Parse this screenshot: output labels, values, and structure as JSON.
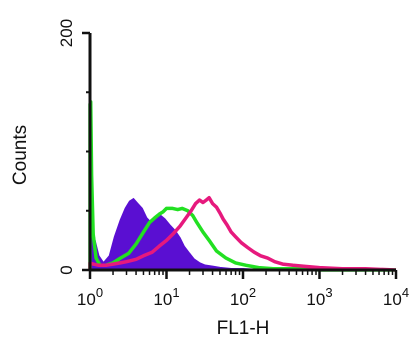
{
  "chart_data": {
    "type": "histogram",
    "xlabel": "FL1-H",
    "ylabel": "Counts",
    "x_scale": "log",
    "xlim": [
      1,
      10000
    ],
    "ylim": [
      0,
      200
    ],
    "x_ticks": [
      {
        "value": 1,
        "base": "10",
        "exp": "0"
      },
      {
        "value": 10,
        "base": "10",
        "exp": "1"
      },
      {
        "value": 100,
        "base": "10",
        "exp": "2"
      },
      {
        "value": 1000,
        "base": "10",
        "exp": "3"
      },
      {
        "value": 10000,
        "base": "10",
        "exp": "4"
      }
    ],
    "y_ticks": [
      {
        "value": 0,
        "label": "0"
      },
      {
        "value": 200,
        "label": "200"
      }
    ],
    "grid": false,
    "series": [
      {
        "style": "filled",
        "color": "#5a0fd2",
        "x": [
          1,
          1.05,
          1.15,
          1.3,
          1.5,
          1.8,
          2.1,
          2.5,
          2.9,
          3.3,
          3.7,
          4.2,
          4.8,
          5.5,
          6.3,
          7.1,
          8,
          9.5,
          11,
          13,
          15,
          17,
          20,
          23,
          27,
          32,
          40,
          50,
          70,
          100,
          200,
          1000,
          10000
        ],
        "y": [
          48,
          45,
          26,
          12,
          6,
          12,
          28,
          42,
          52,
          58,
          60,
          56,
          52,
          44,
          40,
          44,
          47,
          43,
          38,
          33,
          27,
          20,
          14,
          9,
          6,
          4,
          3,
          2,
          1,
          1,
          0,
          0,
          0
        ]
      },
      {
        "style": "line",
        "color": "#22e022",
        "x": [
          1,
          1.02,
          1.05,
          1.1,
          1.2,
          1.35,
          1.6,
          2,
          2.5,
          3.2,
          4,
          5,
          6,
          7,
          8,
          9,
          10,
          12,
          14,
          16,
          19,
          22,
          25,
          30,
          37,
          45,
          60,
          80,
          110,
          160,
          250,
          500,
          1000,
          10000
        ],
        "y": [
          140,
          142,
          80,
          30,
          10,
          4,
          4,
          6,
          10,
          14,
          22,
          32,
          40,
          44,
          47,
          49,
          52,
          52,
          51,
          52,
          50,
          46,
          40,
          32,
          24,
          16,
          10,
          6,
          4,
          2,
          1,
          1,
          0,
          0
        ]
      },
      {
        "style": "line",
        "color": "#e6197d",
        "x": [
          1,
          1.1,
          1.3,
          1.6,
          2,
          2.5,
          3,
          4,
          5,
          6.5,
          8,
          10,
          12,
          15,
          18,
          21,
          24,
          27,
          30,
          33,
          36,
          40,
          45,
          50,
          55,
          62,
          70,
          80,
          95,
          115,
          140,
          170,
          210,
          260,
          330,
          450,
          650,
          1000,
          2000,
          4000,
          10000
        ],
        "y": [
          6,
          5,
          4,
          4,
          5,
          6,
          7,
          9,
          12,
          15,
          20,
          25,
          30,
          37,
          44,
          50,
          56,
          59,
          57,
          59,
          61,
          56,
          53,
          48,
          43,
          38,
          32,
          28,
          23,
          19,
          15,
          12,
          10,
          7,
          5,
          4,
          3,
          2,
          1,
          1,
          0
        ]
      }
    ]
  }
}
